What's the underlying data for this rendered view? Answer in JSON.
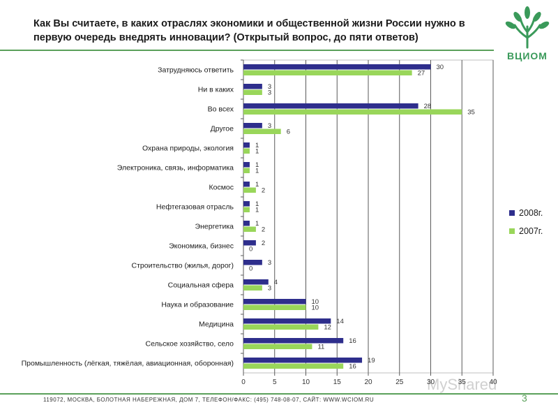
{
  "title": "Как Вы считаете, в каких отраслях экономики и общественной жизни России нужно в первую очередь внедрять инновации? (Открытый вопрос, до пяти ответов)",
  "logo_text": "ВЦИОМ",
  "footer": "119072, МОСКВА, БОЛОТНАЯ НАБЕРЕЖНАЯ, ДОМ 7, ТЕЛЕФОН/ФАКС: (495) 748-08-07, САЙТ: WWW.WCIOM.RU",
  "page_number": "3",
  "watermark": "MyShared",
  "colors": {
    "accent": "#5aa05a",
    "series_2008": "#2e2e8c",
    "series_2007": "#99d65a"
  },
  "chart_data": {
    "type": "bar",
    "orientation": "horizontal",
    "title": "",
    "xlabel": "",
    "ylabel": "",
    "xlim": [
      0,
      40
    ],
    "x_ticks": [
      0,
      5,
      10,
      15,
      20,
      25,
      30,
      35,
      40
    ],
    "grid": true,
    "legend_position": "right",
    "categories": [
      "Затрудняюсь ответить",
      "Ни в каких",
      "Во всех",
      "Другое",
      "Охрана природы, экология",
      "Электроника, связь, информатика",
      "Космос",
      "Нефтегазовая отрасль",
      "Энергетика",
      "Экономика, бизнес",
      "Строительство (жилья, дорог)",
      "Социальная сфера",
      "Наука и образование",
      "Медицина",
      "Сельское хозяйство, село",
      "Промышленность (лёгкая, тяжёлая, авиационная, оборонная)"
    ],
    "series": [
      {
        "name": "2008г.",
        "color": "#2e2e8c",
        "values": [
          30,
          3,
          28,
          3,
          1,
          1,
          1,
          1,
          1,
          2,
          3,
          4,
          10,
          14,
          16,
          19
        ]
      },
      {
        "name": "2007г.",
        "color": "#99d65a",
        "values": [
          27,
          3,
          35,
          6,
          1,
          1,
          2,
          1,
          2,
          0,
          0,
          3,
          10,
          12,
          11,
          16
        ]
      }
    ]
  }
}
